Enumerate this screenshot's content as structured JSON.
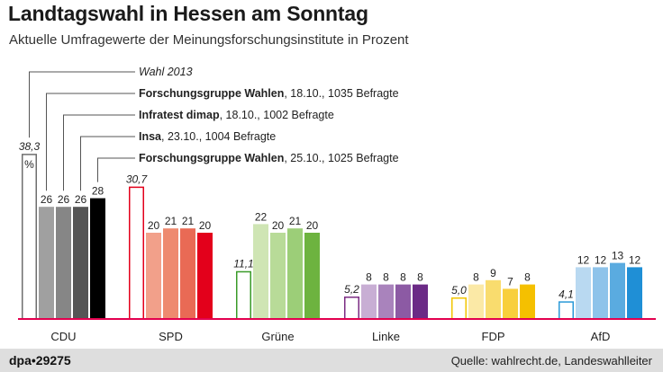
{
  "title": "Landtagswahl in Hessen am Sonntag",
  "subtitle": "Aktuelle Umfragewerte der Meinungsforschungsinstitute in Prozent",
  "credit": "dpa•29275",
  "source": "Quelle: wahlrecht.de, Landeswahlleiter",
  "unit_label": "%",
  "legend": [
    {
      "bold": "",
      "rest": "Wahl 2013",
      "italic": true
    },
    {
      "bold": "Forschungsgruppe Wahlen",
      "rest": ", 18.10., 1035 Befragte",
      "italic": false
    },
    {
      "bold": "Infratest dimap",
      "rest": ", 18.10., 1002 Befragte",
      "italic": false
    },
    {
      "bold": "Insa",
      "rest": ", 23.10., 1004 Befragte",
      "italic": false
    },
    {
      "bold": "Forschungsgruppe Wahlen",
      "rest": ", 25.10., 1025 Befragte",
      "italic": false
    }
  ],
  "chart_data": {
    "type": "bar",
    "title": "Landtagswahl in Hessen am Sonntag",
    "subtitle": "Aktuelle Umfragewerte der Meinungsforschungsinstitute in Prozent",
    "categories": [
      "CDU",
      "SPD",
      "Grüne",
      "Linke",
      "FDP",
      "AfD"
    ],
    "series": [
      {
        "name": "Wahl 2013",
        "values": [
          38.3,
          30.7,
          11.1,
          5.2,
          5.0,
          4.1
        ],
        "labels": [
          "38,3",
          "30,7",
          "11,1",
          "5,2",
          "5,0",
          "4,1"
        ]
      },
      {
        "name": "Forschungsgruppe Wahlen, 18.10., 1035 Befragte",
        "values": [
          26,
          20,
          22,
          8,
          8,
          12
        ],
        "labels": [
          "26",
          "20",
          "22",
          "8",
          "8",
          "12"
        ]
      },
      {
        "name": "Infratest dimap, 18.10., 1002 Befragte",
        "values": [
          26,
          21,
          20,
          8,
          9,
          12
        ],
        "labels": [
          "26",
          "21",
          "20",
          "8",
          "9",
          "12"
        ]
      },
      {
        "name": "Insa, 23.10., 1004 Befragte",
        "values": [
          26,
          21,
          21,
          8,
          7,
          13
        ],
        "labels": [
          "26",
          "21",
          "21",
          "8",
          "7",
          "13"
        ]
      },
      {
        "name": "Forschungsgruppe Wahlen, 25.10., 1025 Befragte",
        "values": [
          28,
          20,
          20,
          8,
          8,
          12
        ],
        "labels": [
          "28",
          "20",
          "20",
          "8",
          "8",
          "12"
        ]
      }
    ],
    "colors": {
      "CDU": [
        "#6e6e6e",
        "#a0a0a0",
        "#868686",
        "#555555",
        "#000000"
      ],
      "SPD": [
        "#e3001b",
        "#f2a08a",
        "#ee8a6f",
        "#e96a55",
        "#e3001b"
      ],
      "Grüne": [
        "#3a9b28",
        "#cfe5b4",
        "#b8db98",
        "#9cce78",
        "#6db33f"
      ],
      "Linke": [
        "#7b2c83",
        "#c8aed4",
        "#a983bc",
        "#8c5aa4",
        "#6b2a86"
      ],
      "FDP": [
        "#f2c500",
        "#fbe9a6",
        "#f9dc6e",
        "#f8cf3c",
        "#f5c000"
      ],
      "AfD": [
        "#2a9ad8",
        "#b9d9f1",
        "#8ec3ea",
        "#5aabe0",
        "#1f8fd6"
      ]
    },
    "baseline_color": "#e3004f",
    "ylim": [
      0,
      40
    ],
    "xlabel": "",
    "ylabel": "",
    "grid": false
  }
}
